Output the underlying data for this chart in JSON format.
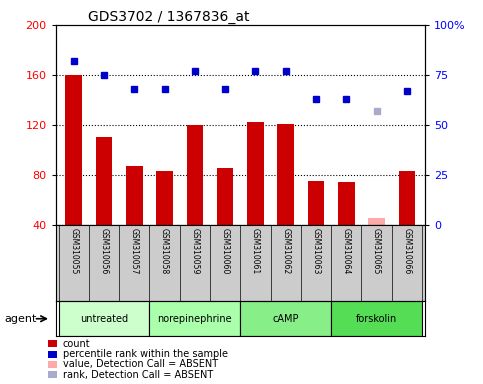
{
  "title": "GDS3702 / 1367836_at",
  "categories": [
    "GSM310055",
    "GSM310056",
    "GSM310057",
    "GSM310058",
    "GSM310059",
    "GSM310060",
    "GSM310061",
    "GSM310062",
    "GSM310063",
    "GSM310064",
    "GSM310065",
    "GSM310066"
  ],
  "bar_values": [
    160,
    110,
    87,
    83,
    120,
    85,
    122,
    121,
    75,
    74,
    45,
    83
  ],
  "bar_colors": [
    "#cc0000",
    "#cc0000",
    "#cc0000",
    "#cc0000",
    "#cc0000",
    "#cc0000",
    "#cc0000",
    "#cc0000",
    "#cc0000",
    "#cc0000",
    "#ffaaaa",
    "#cc0000"
  ],
  "rank_values": [
    82,
    75,
    68,
    68,
    77,
    68,
    77,
    77,
    63,
    63,
    57,
    67
  ],
  "rank_colors": [
    "#0000cc",
    "#0000cc",
    "#0000cc",
    "#0000cc",
    "#0000cc",
    "#0000cc",
    "#0000cc",
    "#0000cc",
    "#0000cc",
    "#0000cc",
    "#aaaacc",
    "#0000cc"
  ],
  "ylim_left": [
    40,
    200
  ],
  "ylim_right": [
    0,
    100
  ],
  "yticks_left": [
    40,
    80,
    120,
    160,
    200
  ],
  "yticks_right": [
    0,
    25,
    50,
    75,
    100
  ],
  "yticklabels_right": [
    "0",
    "25",
    "50",
    "75",
    "100%"
  ],
  "groups": [
    {
      "label": "untreated",
      "indices": [
        0,
        1,
        2
      ],
      "color": "#ccffcc"
    },
    {
      "label": "norepinephrine",
      "indices": [
        3,
        4,
        5
      ],
      "color": "#aaffaa"
    },
    {
      "label": "cAMP",
      "indices": [
        6,
        7,
        8
      ],
      "color": "#88ee88"
    },
    {
      "label": "forskolin",
      "indices": [
        9,
        10,
        11
      ],
      "color": "#55dd55"
    }
  ],
  "legend_items": [
    {
      "label": "count",
      "color": "#cc0000"
    },
    {
      "label": "percentile rank within the sample",
      "color": "#0000cc"
    },
    {
      "label": "value, Detection Call = ABSENT",
      "color": "#ffaaaa"
    },
    {
      "label": "rank, Detection Call = ABSENT",
      "color": "#aaaacc"
    }
  ],
  "agent_label": "agent",
  "cell_bg": "#cccccc",
  "plot_bg": "#ffffff",
  "title_fontsize": 10,
  "bar_width": 0.55
}
